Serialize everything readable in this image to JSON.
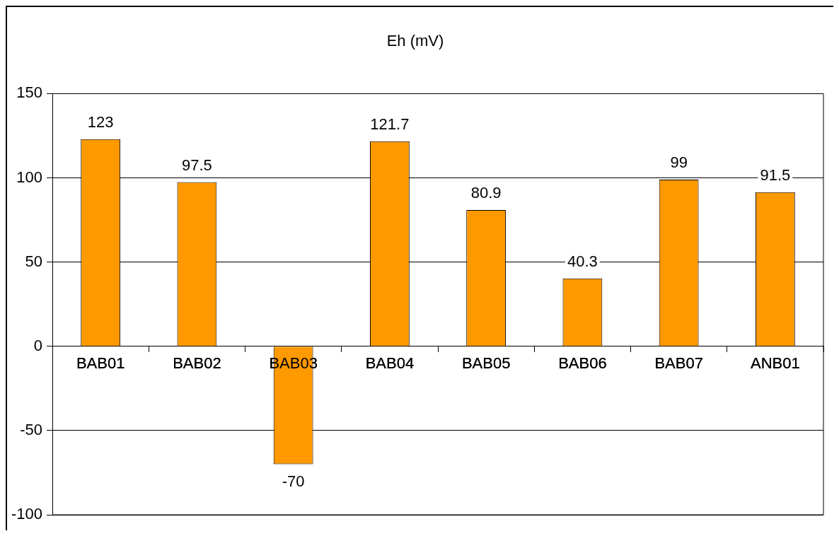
{
  "chart_data": {
    "type": "bar",
    "title": "Eh (mV)",
    "categories": [
      "BAB01",
      "BAB02",
      "BAB03",
      "BAB04",
      "BAB05",
      "BAB06",
      "BAB07",
      "ANB01"
    ],
    "values": [
      123,
      97.5,
      -70,
      121.7,
      80.9,
      40.3,
      99,
      91.5
    ],
    "color": "#ff9900",
    "ylim": [
      -100,
      150
    ],
    "yticks": [
      -100,
      -50,
      0,
      50,
      100,
      150
    ],
    "grid": "y",
    "data_labels": true
  }
}
